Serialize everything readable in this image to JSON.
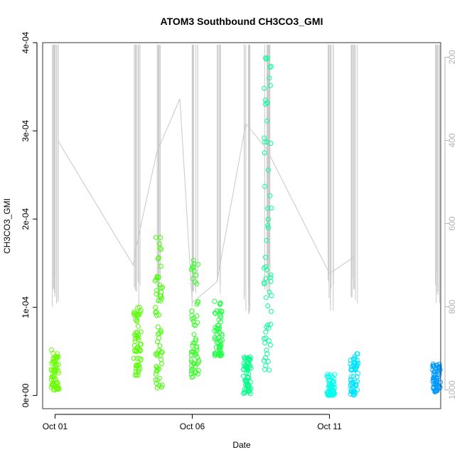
{
  "chart_data": {
    "type": "scatter",
    "title": "ATOM3 Southbound CH3CO3_GMI",
    "xlabel": "Date",
    "ylabel": "CH3CO3_GMI",
    "x_ticks": [
      {
        "label": "Oct 01",
        "day": 1
      },
      {
        "label": "Oct 06",
        "day": 6
      },
      {
        "label": "Oct 11",
        "day": 11
      }
    ],
    "xlim_day": [
      0.55,
      15.05
    ],
    "ylim": [
      -1.5e-05,
      0.0004
    ],
    "y_ticks": [
      {
        "label": "0e+00",
        "value": 0
      },
      {
        "label": "1e-04",
        "value": 0.0001
      },
      {
        "label": "2e-04",
        "value": 0.0002
      },
      {
        "label": "3e-04",
        "value": 0.0003
      },
      {
        "label": "4e-04",
        "value": 0.0004
      }
    ],
    "right_axis": {
      "label": "",
      "reversed": true,
      "ylim": [
        1045,
        165
      ],
      "ticks": [
        {
          "label": "200",
          "value": 200
        },
        {
          "label": "400",
          "value": 400
        },
        {
          "label": "600",
          "value": 600
        },
        {
          "label": "800",
          "value": 800
        },
        {
          "label": "1000",
          "value": 1000
        }
      ],
      "color": "#b3b3b3"
    },
    "grid": false,
    "legend": "none",
    "point_style": "open-circle",
    "scatter_clusters": [
      {
        "day": 1.0,
        "ymin": 6e-06,
        "ymax": 5.2e-05,
        "color": "#66ff00"
      },
      {
        "day": 4.0,
        "ymin": 2.2e-05,
        "ymax": 0.0001,
        "color": "#55ff00"
      },
      {
        "day": 4.78,
        "ymin": 8e-06,
        "ymax": 0.000195,
        "color": "#44ff00"
      },
      {
        "day": 6.1,
        "ymin": 2e-05,
        "ymax": 0.000155,
        "color": "#33ff22"
      },
      {
        "day": 6.95,
        "ymin": 4.5e-05,
        "ymax": 0.000107,
        "color": "#22ff44"
      },
      {
        "day": 8.0,
        "ymin": 2e-06,
        "ymax": 4.5e-05,
        "color": "#00ff88"
      },
      {
        "day": 8.75,
        "ymin": 2.8e-05,
        "ymax": 0.000388,
        "color": "#00ff99"
      },
      {
        "day": 11.05,
        "ymin": 0.0,
        "ymax": 2.4e-05,
        "color": "#00ffee"
      },
      {
        "day": 11.9,
        "ymin": 0.0,
        "ymax": 5.2e-05,
        "color": "#00e5ff"
      },
      {
        "day": 14.9,
        "ymin": 4e-06,
        "ymax": 3.6e-05,
        "color": "#0099ff"
      }
    ],
    "altitude_profiles": [
      {
        "day": 1.0,
        "top": 170,
        "bottom": 810
      },
      {
        "day": 4.0,
        "top": 170,
        "bottom": 800
      },
      {
        "day": 4.78,
        "top": 170,
        "bottom": 800
      },
      {
        "day": 6.1,
        "top": 170,
        "bottom": 810
      },
      {
        "day": 6.95,
        "top": 170,
        "bottom": 780
      },
      {
        "day": 8.0,
        "top": 170,
        "bottom": 820
      },
      {
        "day": 8.75,
        "top": 170,
        "bottom": 780
      },
      {
        "day": 11.05,
        "top": 170,
        "bottom": 820
      },
      {
        "day": 11.9,
        "top": 170,
        "bottom": 800
      },
      {
        "day": 14.9,
        "top": 170,
        "bottom": 800
      }
    ],
    "altitude_transit": [
      {
        "day": 1.1,
        "alt": 400
      },
      {
        "day": 3.85,
        "alt": 700
      },
      {
        "day": 3.95,
        "alt": 660
      },
      {
        "day": 4.7,
        "alt": 430
      },
      {
        "day": 5.55,
        "alt": 300
      },
      {
        "day": 6.0,
        "alt": 790
      },
      {
        "day": 6.9,
        "alt": 740
      },
      {
        "day": 7.95,
        "alt": 360
      },
      {
        "day": 8.7,
        "alt": 420
      },
      {
        "day": 11.0,
        "alt": 720
      },
      {
        "day": 11.9,
        "alt": 680
      }
    ],
    "line_color": "#c8c8c8"
  }
}
